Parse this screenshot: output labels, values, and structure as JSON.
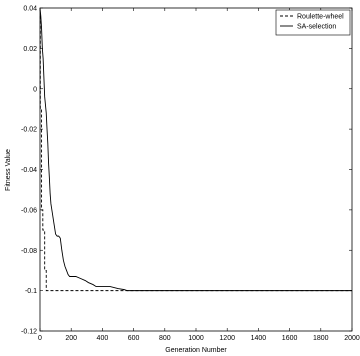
{
  "chart_data": {
    "type": "line",
    "xlabel": "Generation Number",
    "ylabel": "Fitness Value",
    "xlim": [
      0,
      2000
    ],
    "ylim": [
      -0.12,
      0.04
    ],
    "xticks": [
      0,
      200,
      400,
      600,
      800,
      1000,
      1200,
      1400,
      1600,
      1800,
      2000
    ],
    "yticks": [
      0.04,
      0.02,
      0,
      -0.02,
      -0.04,
      -0.06,
      -0.08,
      -0.1,
      -0.12
    ],
    "ytick_labels": [
      "0.04",
      "0.02",
      "0",
      "-0.02",
      "-0.04",
      "-0.06",
      "-0.08",
      "-0.1",
      "-0.12"
    ],
    "grid": false,
    "legend_position": "top-right",
    "series": [
      {
        "name": "Roulette-wheel",
        "style": "dashed",
        "color": "#000000",
        "x": [
          0,
          2,
          2,
          10,
          10,
          18,
          18,
          30,
          30,
          40,
          40,
          2000
        ],
        "y": [
          0.036,
          0.036,
          -0.01,
          -0.01,
          -0.06,
          -0.06,
          -0.07,
          -0.07,
          -0.09,
          -0.09,
          -0.1,
          -0.1
        ]
      },
      {
        "name": "SA-selection",
        "style": "solid",
        "color": "#000000",
        "x": [
          0,
          5,
          10,
          15,
          20,
          30,
          40,
          45,
          50,
          55,
          60,
          65,
          70,
          80,
          90,
          100,
          110,
          120,
          130,
          140,
          150,
          160,
          170,
          180,
          190,
          200,
          230,
          260,
          290,
          310,
          340,
          360,
          400,
          450,
          500,
          540,
          560,
          600,
          700,
          800,
          1000,
          1200,
          1400,
          1600,
          1800,
          2000
        ],
        "y": [
          0.04,
          0.036,
          0.03,
          0.02,
          0.015,
          -0.004,
          -0.012,
          -0.02,
          -0.027,
          -0.037,
          -0.044,
          -0.052,
          -0.057,
          -0.062,
          -0.067,
          -0.072,
          -0.073,
          -0.073,
          -0.074,
          -0.08,
          -0.085,
          -0.088,
          -0.09,
          -0.092,
          -0.093,
          -0.093,
          -0.093,
          -0.094,
          -0.095,
          -0.096,
          -0.097,
          -0.098,
          -0.098,
          -0.098,
          -0.099,
          -0.0995,
          -0.1,
          -0.1,
          -0.1,
          -0.1,
          -0.1,
          -0.1,
          -0.1,
          -0.1,
          -0.1,
          -0.1
        ]
      }
    ]
  }
}
